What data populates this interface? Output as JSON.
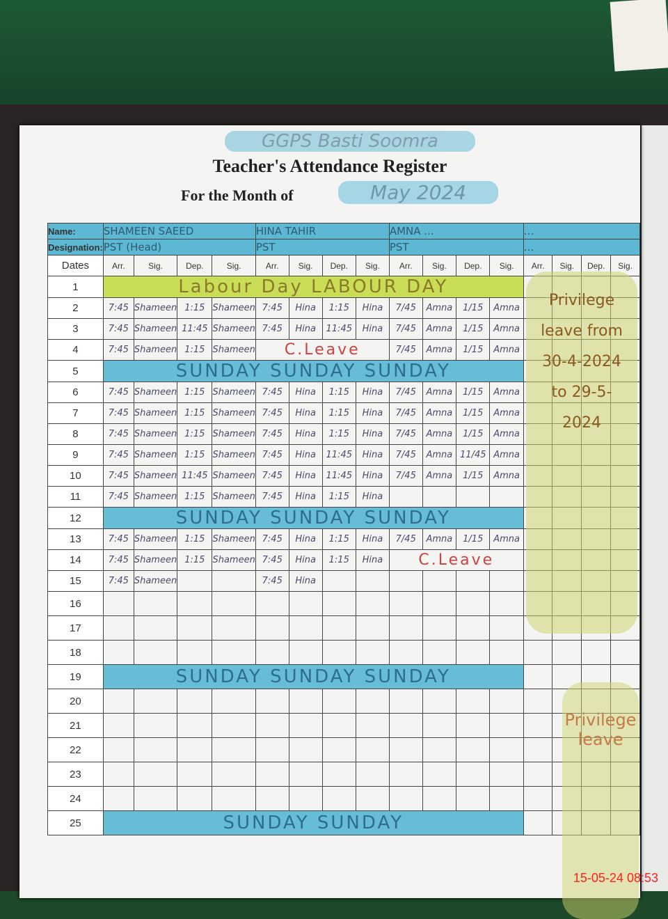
{
  "school": "GGPS Basti Soomra",
  "title": "Teacher's Attendance Register",
  "month_label": "For the Month of",
  "month_value": "May 2024",
  "labels": {
    "name": "Name:",
    "designation": "Designation:",
    "dates": "Dates"
  },
  "columns": [
    "Arr.",
    "Sig.",
    "Dep.",
    "Sig."
  ],
  "teachers": [
    {
      "name": "SHAMEEN SAEED",
      "designation": "PST (Head)"
    },
    {
      "name": "HINA TAHIR",
      "designation": "PST"
    },
    {
      "name": "AMNA ...",
      "designation": "PST"
    },
    {
      "name": "...",
      "designation": "..."
    }
  ],
  "rows": [
    {
      "date": "1",
      "band": {
        "type": "labour",
        "text": "Labour Day   LABOUR   DAY"
      }
    },
    {
      "date": "2",
      "cells": [
        [
          "7:45",
          "Shameen",
          "1:15",
          "Shameen"
        ],
        [
          "7:45",
          "Hina",
          "1:15",
          "Hina"
        ],
        [
          "7/45",
          "Amna",
          "1/15",
          "Amna"
        ]
      ]
    },
    {
      "date": "3",
      "cells": [
        [
          "7:45",
          "Shameen",
          "11:45",
          "Shameen"
        ],
        [
          "7:45",
          "Hina",
          "11:45",
          "Hina"
        ],
        [
          "7/45",
          "Amna",
          "1/15",
          "Amna"
        ]
      ]
    },
    {
      "date": "4",
      "cells": [
        [
          "7:45",
          "Shameen",
          "1:15",
          "Shameen"
        ],
        null,
        [
          "7/45",
          "Amna",
          "1/15",
          "Amna"
        ]
      ],
      "note": {
        "teacher": 1,
        "text": "C.Leave"
      }
    },
    {
      "date": "5",
      "band": {
        "type": "sunday",
        "text": "SUNDAY   SUNDAY   SUNDAY"
      }
    },
    {
      "date": "6",
      "cells": [
        [
          "7:45",
          "Shameen",
          "1:15",
          "Shameen"
        ],
        [
          "7:45",
          "Hina",
          "1:15",
          "Hina"
        ],
        [
          "7/45",
          "Amna",
          "1/15",
          "Amna"
        ]
      ]
    },
    {
      "date": "7",
      "cells": [
        [
          "7:45",
          "Shameen",
          "1:15",
          "Shameen"
        ],
        [
          "7:45",
          "Hina",
          "1:15",
          "Hina"
        ],
        [
          "7/45",
          "Amna",
          "1/15",
          "Amna"
        ]
      ]
    },
    {
      "date": "8",
      "cells": [
        [
          "7:45",
          "Shameen",
          "1:15",
          "Shameen"
        ],
        [
          "7:45",
          "Hina",
          "1:15",
          "Hina"
        ],
        [
          "7/45",
          "Amna",
          "1/15",
          "Amna"
        ]
      ]
    },
    {
      "date": "9",
      "cells": [
        [
          "7:45",
          "Shameen",
          "1:15",
          "Shameen"
        ],
        [
          "7:45",
          "Hina",
          "11:45",
          "Hina"
        ],
        [
          "7/45",
          "Amna",
          "11/45",
          "Amna"
        ]
      ]
    },
    {
      "date": "10",
      "cells": [
        [
          "7:45",
          "Shameen",
          "11:45",
          "Shameen"
        ],
        [
          "7:45",
          "Hina",
          "11:45",
          "Hina"
        ],
        [
          "7/45",
          "Amna",
          "1/15",
          "Amna"
        ]
      ]
    },
    {
      "date": "11",
      "cells": [
        [
          "7:45",
          "Shameen",
          "1:15",
          "Shameen"
        ],
        [
          "7:45",
          "Hina",
          "1:15",
          "Hina"
        ],
        null
      ]
    },
    {
      "date": "12",
      "band": {
        "type": "sunday",
        "text": "SUNDAY   SUNDAY   SUNDAY"
      }
    },
    {
      "date": "13",
      "cells": [
        [
          "7:45",
          "Shameen",
          "1:15",
          "Shameen"
        ],
        [
          "7:45",
          "Hina",
          "1:15",
          "Hina"
        ],
        [
          "7/45",
          "Amna",
          "1/15",
          "Amna"
        ]
      ]
    },
    {
      "date": "14",
      "cells": [
        [
          "7:45",
          "Shameen",
          "1:15",
          "Shameen"
        ],
        [
          "7:45",
          "Hina",
          "1:15",
          "Hina"
        ],
        null
      ],
      "note": {
        "teacher": 2,
        "text": "C.Leave"
      }
    },
    {
      "date": "15",
      "cells": [
        [
          "7:45",
          "Shameen",
          "",
          ""
        ],
        [
          "7:45",
          "Hina",
          "",
          ""
        ],
        null
      ]
    },
    {
      "date": "16"
    },
    {
      "date": "17"
    },
    {
      "date": "18"
    },
    {
      "date": "19",
      "band": {
        "type": "sunday",
        "text": "SUNDAY   SUNDAY   SUNDAY"
      }
    },
    {
      "date": "20"
    },
    {
      "date": "21"
    },
    {
      "date": "22"
    },
    {
      "date": "23"
    },
    {
      "date": "24"
    },
    {
      "date": "25",
      "band": {
        "type": "sunday",
        "text": "SUNDAY   SUNDAY"
      }
    }
  ],
  "privilege_leave_1": "Privilege leave from 30-4-2024 to 29-5-2024",
  "privilege_leave_2": "Privilege leave",
  "timestamp": "15-05-24  08:53",
  "colors": {
    "sunday_band": "#67bcd6",
    "labour_band": "#c9dd57",
    "leave_ink": "#d04040",
    "timestamp": "#ff2020"
  }
}
